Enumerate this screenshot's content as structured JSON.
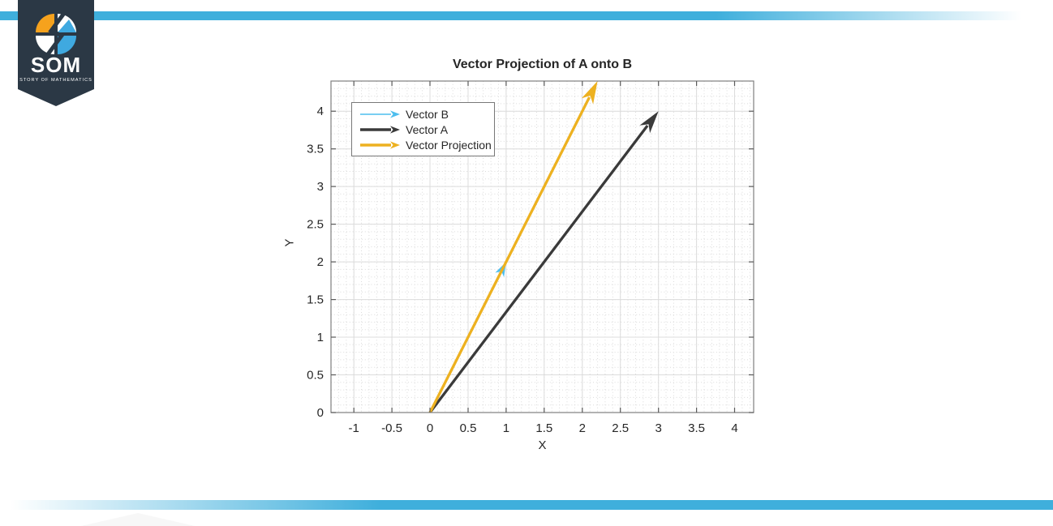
{
  "branding": {
    "name": "SOM",
    "tagline": "STORY OF MATHEMATICS",
    "banner_color": "#2b3845",
    "accent_blue": "#3fafdc",
    "icon_orange": "#f6a21d",
    "icon_blue": "#3fa9e0",
    "icon_white": "#ffffff"
  },
  "chart_data": {
    "type": "line",
    "plot_kind": "vector-quiver",
    "title": "Vector Projection of A onto B",
    "xlabel": "X",
    "ylabel": "Y",
    "xlim": [
      -1.3,
      4.25
    ],
    "ylim": [
      0,
      4.4
    ],
    "x_ticks": [
      -1,
      -0.5,
      0,
      0.5,
      1,
      1.5,
      2,
      2.5,
      3,
      3.5,
      4
    ],
    "x_tick_labels": [
      "-1",
      "-0.5",
      "0",
      "0.5",
      "1",
      "1.5",
      "2",
      "2.5",
      "3",
      "3.5",
      "4"
    ],
    "y_ticks": [
      0,
      0.5,
      1,
      1.5,
      2,
      2.5,
      3,
      3.5,
      4
    ],
    "y_tick_labels": [
      "0",
      "0.5",
      "1",
      "1.5",
      "2",
      "2.5",
      "3",
      "3.5",
      "4"
    ],
    "grid": {
      "major_step": 0.5,
      "minor_step": 0.1,
      "major_color": "#dcdcdc",
      "minor_color": "#d3d3d3",
      "minor_style": "dotted"
    },
    "axis_color": "#7f7f7f",
    "tick_color": "#5a5a5a",
    "text_color": "#262626",
    "legend_position": "top-left-inside",
    "series": [
      {
        "name": "Vector B",
        "from": [
          0,
          0
        ],
        "to": [
          1,
          2
        ],
        "color": "#4DBEEE"
      },
      {
        "name": "Vector A",
        "from": [
          0,
          0
        ],
        "to": [
          3,
          4
        ],
        "color": "#3a3a3a"
      },
      {
        "name": "Vector Projection",
        "from": [
          0,
          0
        ],
        "to": [
          2.2,
          4.4
        ],
        "color": "#EDB120"
      }
    ]
  }
}
